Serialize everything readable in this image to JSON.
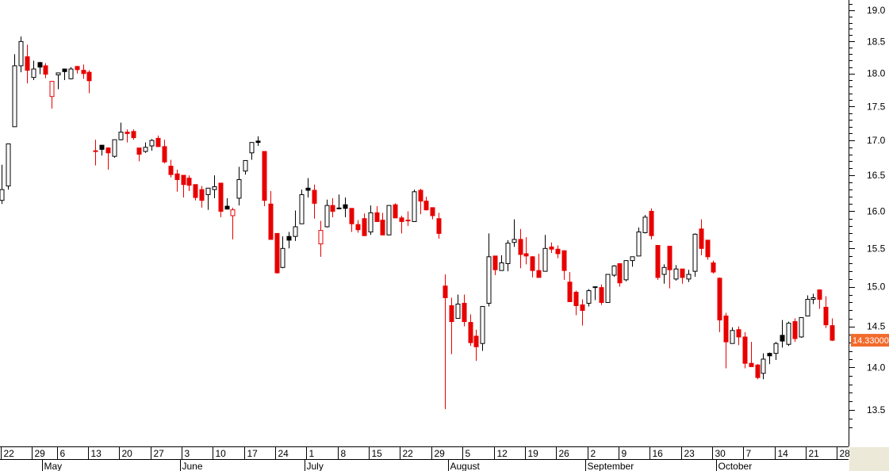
{
  "chart_data": {
    "type": "candlestick",
    "title": "",
    "xlabel": "",
    "ylabel": "",
    "y_scale": "log",
    "ylim": [
      13.2,
      19.15
    ],
    "grid": false,
    "y_axis_side": "right",
    "y_ticks": [
      "19.0",
      "18.5",
      "18.0",
      "17.5",
      "17.0",
      "16.5",
      "16.0",
      "15.5",
      "15.0",
      "14.5",
      "14.0",
      "13.5"
    ],
    "last_price_label": "14.33000",
    "colors": {
      "up": "#000000",
      "down": "#e80000",
      "last_price_bg": "#f26b2c",
      "corner": "#ece9d8"
    },
    "candle_styles": {
      "U": "hollow black",
      "D": "filled red",
      "B": "filled black",
      "R": "hollow red"
    },
    "week_ticks": [
      {
        "index": 0,
        "label": "22"
      },
      {
        "index": 5,
        "label": "29"
      },
      {
        "index": 9,
        "label": "6"
      },
      {
        "index": 14,
        "label": "13"
      },
      {
        "index": 19,
        "label": "20"
      },
      {
        "index": 24,
        "label": "27"
      },
      {
        "index": 29,
        "label": "3"
      },
      {
        "index": 34,
        "label": "10"
      },
      {
        "index": 39,
        "label": "17"
      },
      {
        "index": 44,
        "label": "24"
      },
      {
        "index": 49,
        "label": "1"
      },
      {
        "index": 54,
        "label": "8"
      },
      {
        "index": 59,
        "label": "15"
      },
      {
        "index": 64,
        "label": "22"
      },
      {
        "index": 69,
        "label": "29"
      },
      {
        "index": 74,
        "label": "5"
      },
      {
        "index": 79,
        "label": "12"
      },
      {
        "index": 84,
        "label": "19"
      },
      {
        "index": 89,
        "label": "26"
      },
      {
        "index": 94,
        "label": "2"
      },
      {
        "index": 99,
        "label": "9"
      },
      {
        "index": 104,
        "label": "16"
      },
      {
        "index": 109,
        "label": "23"
      },
      {
        "index": 114,
        "label": "30"
      },
      {
        "index": 119,
        "label": "7"
      },
      {
        "index": 124,
        "label": "14"
      },
      {
        "index": 129,
        "label": "21"
      },
      {
        "index": 134,
        "label": "28"
      }
    ],
    "month_ticks": [
      {
        "index": 7,
        "label": "May"
      },
      {
        "index": 29,
        "label": "June"
      },
      {
        "index": 49,
        "label": "July"
      },
      {
        "index": 72,
        "label": "August"
      },
      {
        "index": 94,
        "label": "September"
      },
      {
        "index": 115,
        "label": "October"
      }
    ],
    "candles_fields": [
      "open",
      "high",
      "low",
      "close",
      "style"
    ],
    "candles": [
      [
        16.15,
        16.65,
        16.1,
        16.3,
        "U"
      ],
      [
        16.35,
        16.95,
        16.3,
        16.95,
        "U"
      ],
      [
        17.2,
        18.3,
        17.2,
        18.12,
        "U"
      ],
      [
        18.12,
        18.58,
        18.02,
        18.5,
        "U"
      ],
      [
        18.26,
        18.45,
        17.85,
        18.05,
        "D"
      ],
      [
        17.94,
        18.2,
        17.9,
        18.07,
        "U"
      ],
      [
        18.1,
        18.18,
        17.99,
        18.17,
        "B"
      ],
      [
        18.12,
        18.16,
        17.93,
        17.99,
        "D"
      ],
      [
        17.65,
        17.88,
        17.47,
        17.88,
        "R"
      ],
      [
        17.98,
        18.01,
        17.76,
        18.01,
        "U"
      ],
      [
        18.03,
        18.07,
        17.9,
        18.07,
        "B"
      ],
      [
        17.92,
        18.1,
        17.91,
        18.07,
        "U"
      ],
      [
        18.11,
        18.11,
        18.0,
        18.06,
        "D"
      ],
      [
        18.05,
        18.14,
        17.92,
        18.0,
        "D"
      ],
      [
        18.02,
        18.05,
        17.7,
        17.89,
        "D"
      ],
      [
        16.85,
        17.01,
        16.64,
        16.84,
        "D"
      ],
      [
        16.87,
        16.93,
        16.78,
        16.93,
        "B"
      ],
      [
        16.89,
        16.9,
        16.58,
        16.82,
        "D"
      ],
      [
        16.77,
        17.01,
        16.75,
        17.01,
        "U"
      ],
      [
        17.01,
        17.26,
        17.0,
        17.12,
        "U"
      ],
      [
        17.12,
        17.16,
        16.97,
        17.1,
        "D"
      ],
      [
        17.13,
        17.16,
        17.01,
        17.04,
        "D"
      ],
      [
        16.89,
        16.89,
        16.7,
        16.8,
        "D"
      ],
      [
        16.84,
        16.97,
        16.82,
        16.9,
        "U"
      ],
      [
        16.92,
        17.02,
        16.85,
        17.0,
        "U"
      ],
      [
        17.03,
        17.07,
        16.91,
        16.91,
        "D"
      ],
      [
        16.91,
        17.01,
        16.67,
        16.69,
        "D"
      ],
      [
        16.63,
        16.72,
        16.47,
        16.51,
        "D"
      ],
      [
        16.52,
        16.58,
        16.27,
        16.44,
        "D"
      ],
      [
        16.5,
        16.5,
        16.19,
        16.37,
        "D"
      ],
      [
        16.46,
        16.5,
        16.28,
        16.36,
        "D"
      ],
      [
        16.37,
        16.37,
        16.15,
        16.19,
        "D"
      ],
      [
        16.3,
        16.35,
        16.05,
        16.15,
        "D"
      ],
      [
        16.23,
        16.32,
        16.02,
        16.32,
        "U"
      ],
      [
        16.3,
        16.5,
        16.18,
        16.34,
        "U"
      ],
      [
        16.39,
        16.39,
        15.92,
        16.0,
        "D"
      ],
      [
        16.03,
        16.18,
        16.03,
        16.07,
        "B"
      ],
      [
        15.94,
        16.05,
        15.62,
        16.02,
        "R"
      ],
      [
        16.18,
        16.62,
        16.08,
        16.44,
        "U"
      ],
      [
        16.56,
        16.71,
        16.51,
        16.71,
        "U"
      ],
      [
        16.82,
        16.97,
        16.72,
        16.97,
        "U"
      ],
      [
        16.97,
        17.06,
        16.92,
        16.99,
        "B"
      ],
      [
        16.84,
        16.84,
        16.07,
        16.15,
        "D"
      ],
      [
        16.1,
        16.28,
        15.62,
        15.62,
        "D"
      ],
      [
        15.7,
        15.7,
        15.17,
        15.18,
        "D"
      ],
      [
        15.25,
        15.66,
        15.24,
        15.5,
        "U"
      ],
      [
        15.61,
        15.72,
        15.5,
        15.66,
        "B"
      ],
      [
        15.66,
        16.01,
        15.6,
        15.79,
        "U"
      ],
      [
        15.83,
        16.3,
        15.83,
        16.23,
        "U"
      ],
      [
        16.29,
        16.46,
        16.19,
        16.32,
        "B"
      ],
      [
        16.29,
        16.37,
        15.9,
        16.11,
        "D"
      ],
      [
        15.56,
        15.87,
        15.39,
        15.74,
        "R"
      ],
      [
        15.79,
        16.16,
        15.78,
        16.08,
        "U"
      ],
      [
        16.08,
        16.18,
        15.92,
        16.0,
        "D"
      ],
      [
        16.04,
        16.23,
        16.03,
        16.045,
        "U"
      ],
      [
        16.04,
        16.19,
        15.92,
        16.09,
        "B"
      ],
      [
        16.04,
        16.04,
        15.72,
        15.83,
        "D"
      ],
      [
        15.82,
        15.88,
        15.71,
        15.75,
        "D"
      ],
      [
        15.9,
        15.97,
        15.67,
        15.67,
        "D"
      ],
      [
        15.72,
        16.08,
        15.68,
        15.98,
        "U"
      ],
      [
        15.98,
        16.07,
        15.86,
        15.86,
        "D"
      ],
      [
        15.88,
        15.98,
        15.68,
        15.68,
        "D"
      ],
      [
        15.68,
        16.08,
        15.68,
        16.08,
        "U"
      ],
      [
        16.09,
        16.11,
        15.91,
        15.91,
        "D"
      ],
      [
        15.91,
        15.94,
        15.7,
        15.86,
        "D"
      ],
      [
        15.88,
        16.0,
        15.8,
        15.87,
        "D"
      ],
      [
        15.86,
        16.3,
        15.86,
        16.27,
        "U"
      ],
      [
        16.29,
        16.31,
        15.96,
        16.14,
        "D"
      ],
      [
        16.14,
        16.2,
        16.01,
        16.02,
        "D"
      ],
      [
        16.05,
        16.05,
        15.89,
        15.94,
        "D"
      ],
      [
        15.9,
        15.98,
        15.63,
        15.7,
        "D"
      ],
      [
        15.01,
        15.16,
        13.51,
        14.86,
        "D"
      ],
      [
        14.76,
        14.86,
        14.16,
        14.56,
        "D"
      ],
      [
        14.6,
        14.9,
        14.6,
        14.78,
        "U"
      ],
      [
        14.79,
        14.9,
        14.5,
        14.56,
        "D"
      ],
      [
        14.55,
        14.65,
        14.26,
        14.3,
        "D"
      ],
      [
        14.38,
        14.46,
        14.08,
        14.25,
        "D"
      ],
      [
        14.29,
        14.75,
        14.2,
        14.75,
        "U"
      ],
      [
        14.79,
        15.7,
        14.75,
        15.39,
        "U"
      ],
      [
        15.4,
        15.4,
        15.15,
        15.22,
        "D"
      ],
      [
        15.21,
        15.41,
        15.21,
        15.31,
        "U"
      ],
      [
        15.3,
        15.61,
        15.2,
        15.57,
        "U"
      ],
      [
        15.58,
        15.89,
        15.52,
        15.62,
        "U"
      ],
      [
        15.62,
        15.76,
        15.24,
        15.42,
        "D"
      ],
      [
        15.43,
        15.65,
        15.29,
        15.4,
        "D"
      ],
      [
        15.39,
        15.4,
        15.12,
        15.21,
        "D"
      ],
      [
        15.21,
        15.43,
        15.12,
        15.12,
        "D"
      ],
      [
        15.2,
        15.68,
        15.2,
        15.5,
        "U"
      ],
      [
        15.52,
        15.58,
        15.44,
        15.49,
        "D"
      ],
      [
        15.49,
        15.54,
        15.37,
        15.43,
        "D"
      ],
      [
        15.47,
        15.47,
        15.09,
        15.21,
        "D"
      ],
      [
        15.06,
        15.19,
        14.81,
        14.81,
        "D"
      ],
      [
        14.93,
        14.95,
        14.64,
        14.76,
        "D"
      ],
      [
        14.77,
        14.84,
        14.51,
        14.7,
        "D"
      ],
      [
        14.79,
        14.97,
        14.75,
        14.95,
        "U"
      ],
      [
        14.99,
        15.0,
        14.83,
        15.0,
        "B"
      ],
      [
        14.99,
        15.03,
        14.77,
        14.8,
        "D"
      ],
      [
        14.8,
        15.16,
        14.8,
        15.16,
        "U"
      ],
      [
        15.15,
        15.28,
        15.13,
        15.27,
        "U"
      ],
      [
        15.3,
        15.3,
        15.0,
        15.05,
        "D"
      ],
      [
        15.09,
        15.34,
        15.07,
        15.34,
        "U"
      ],
      [
        15.34,
        15.39,
        15.26,
        15.39,
        "U"
      ],
      [
        15.4,
        15.78,
        15.4,
        15.72,
        "U"
      ],
      [
        15.71,
        15.95,
        15.7,
        15.92,
        "U"
      ],
      [
        16.0,
        16.04,
        15.62,
        15.67,
        "D"
      ],
      [
        15.54,
        15.54,
        15.09,
        15.12,
        "D"
      ],
      [
        15.16,
        15.29,
        15.04,
        15.25,
        "U"
      ],
      [
        15.53,
        15.53,
        14.98,
        15.22,
        "D"
      ],
      [
        15.1,
        15.28,
        15.08,
        15.23,
        "U"
      ],
      [
        15.23,
        15.23,
        15.04,
        15.12,
        "D"
      ],
      [
        15.1,
        15.22,
        15.06,
        15.16,
        "U"
      ],
      [
        15.2,
        15.7,
        15.13,
        15.69,
        "U"
      ],
      [
        15.76,
        15.89,
        15.41,
        15.5,
        "D"
      ],
      [
        15.61,
        15.61,
        15.35,
        15.39,
        "D"
      ],
      [
        15.31,
        15.34,
        15.17,
        15.19,
        "D"
      ],
      [
        15.11,
        15.12,
        14.43,
        14.58,
        "D"
      ],
      [
        14.63,
        14.67,
        13.99,
        14.31,
        "D"
      ],
      [
        14.29,
        14.49,
        14.29,
        14.45,
        "U"
      ],
      [
        14.46,
        14.5,
        14.27,
        14.37,
        "D"
      ],
      [
        14.37,
        14.43,
        13.99,
        14.05,
        "D"
      ],
      [
        14.05,
        14.31,
        14.01,
        14.01,
        "D"
      ],
      [
        14.03,
        14.04,
        13.86,
        13.88,
        "D"
      ],
      [
        13.93,
        14.17,
        13.86,
        14.1,
        "U"
      ],
      [
        14.14,
        14.18,
        14.04,
        14.17,
        "B"
      ],
      [
        14.17,
        14.31,
        14.09,
        14.29,
        "U"
      ],
      [
        14.32,
        14.58,
        14.24,
        14.39,
        "B"
      ],
      [
        14.28,
        14.56,
        14.26,
        14.54,
        "U"
      ],
      [
        14.56,
        14.6,
        14.31,
        14.35,
        "D"
      ],
      [
        14.37,
        14.61,
        14.36,
        14.61,
        "U"
      ],
      [
        14.63,
        14.89,
        14.63,
        14.84,
        "U"
      ],
      [
        14.84,
        14.91,
        14.78,
        14.86,
        "U"
      ],
      [
        14.96,
        14.96,
        14.72,
        14.84,
        "D"
      ],
      [
        14.74,
        14.88,
        14.48,
        14.52,
        "D"
      ],
      [
        14.51,
        14.6,
        14.32,
        14.33,
        "D"
      ]
    ]
  }
}
